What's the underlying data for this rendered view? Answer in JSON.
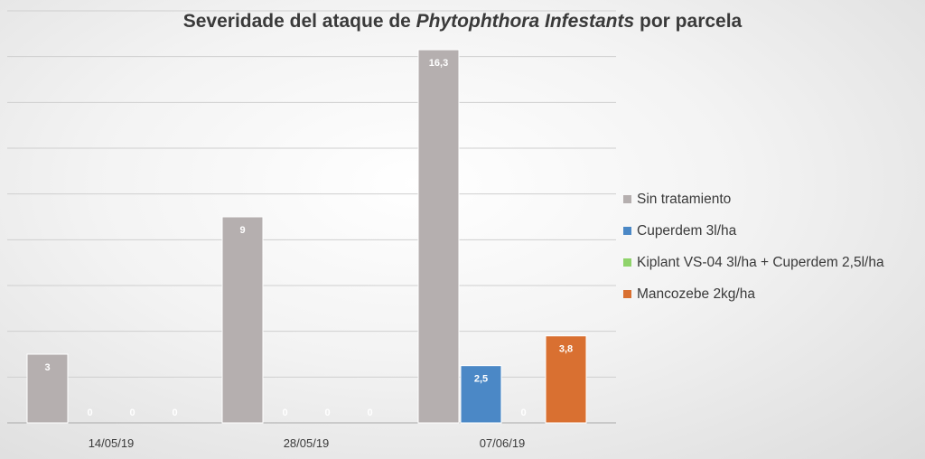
{
  "chart_data": {
    "type": "bar",
    "title": {
      "part1": "Severidade del ataque de ",
      "italic": "Phytophthora Infestants",
      "part2": " por parcela"
    },
    "categories": [
      "14/05/19",
      "28/05/19",
      "07/06/19"
    ],
    "series": [
      {
        "name": "Sin tratamiento",
        "color": "#b5afaf",
        "values": [
          3,
          9,
          16.3
        ],
        "labels": [
          "3",
          "9",
          "16,3"
        ]
      },
      {
        "name": "Cuperdem 3l/ha",
        "color": "#4b88c6",
        "values": [
          0,
          0,
          2.5
        ],
        "labels": [
          "0",
          "0",
          "2,5"
        ]
      },
      {
        "name": "Kiplant VS-04 3l/ha + Cuperdem 2,5l/ha",
        "color": "#8fd36b",
        "values": [
          0,
          0,
          0
        ],
        "labels": [
          "0",
          "0",
          "0"
        ]
      },
      {
        "name": "Mancozebe 2kg/ha",
        "color": "#d97031",
        "values": [
          0,
          0,
          3.8
        ],
        "labels": [
          "0",
          "0",
          "3,8"
        ]
      }
    ],
    "ylim": [
      0,
      18
    ],
    "grid": true,
    "legend": "right"
  }
}
